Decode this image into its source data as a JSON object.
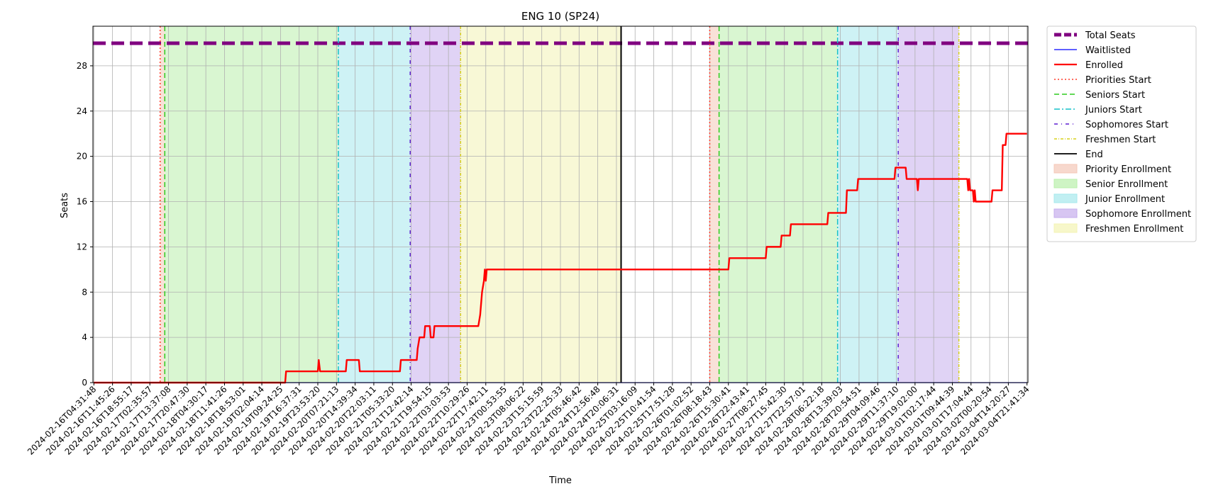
{
  "chart_data": {
    "type": "line",
    "title": "ENG 10 (SP24)",
    "xlabel": "Time",
    "ylabel": "Seats",
    "ylim": [
      0,
      31.5
    ],
    "grid": true,
    "legend_placement": "outside-upper-right",
    "yticks": [
      0,
      4,
      8,
      12,
      16,
      20,
      24,
      28
    ],
    "xlim": [
      -0.05,
      50.05
    ],
    "xticks": [
      "2024-02-16T04:31:48",
      "2024-02-16T11:45:26",
      "2024-02-16T18:55:17",
      "2024-02-17T02:35:57",
      "2024-02-17T13:37:08",
      "2024-02-17T20:47:30",
      "2024-02-18T04:30:17",
      "2024-02-18T11:41:26",
      "2024-02-18T18:53:01",
      "2024-02-19T02:04:14",
      "2024-02-19T09:24:25",
      "2024-02-19T16:37:31",
      "2024-02-19T23:53:20",
      "2024-02-20T07:21:13",
      "2024-02-20T14:39:34",
      "2024-02-20T22:03:11",
      "2024-02-21T05:33:20",
      "2024-02-21T12:42:14",
      "2024-02-21T19:54:15",
      "2024-02-22T03:03:53",
      "2024-02-22T10:29:26",
      "2024-02-22T17:42:11",
      "2024-02-23T00:53:55",
      "2024-02-23T08:06:22",
      "2024-02-23T15:15:59",
      "2024-02-23T22:25:33",
      "2024-02-24T05:46:42",
      "2024-02-24T12:56:48",
      "2024-02-24T20:06:31",
      "2024-02-25T03:16:09",
      "2024-02-25T10:41:54",
      "2024-02-25T17:51:28",
      "2024-02-26T01:02:52",
      "2024-02-26T08:18:43",
      "2024-02-26T15:30:41",
      "2024-02-26T22:43:41",
      "2024-02-27T08:27:45",
      "2024-02-27T15:42:30",
      "2024-02-27T22:57:01",
      "2024-02-28T06:22:18",
      "2024-02-28T13:39:03",
      "2024-02-28T20:54:51",
      "2024-02-29T04:09:46",
      "2024-02-29T11:37:10",
      "2024-02-29T19:02:00",
      "2024-03-01T02:17:44",
      "2024-03-01T09:44:39",
      "2024-03-01T17:04:44",
      "2024-03-02T00:20:54",
      "2024-03-04T14:20:27",
      "2024-03-04T21:41:34"
    ],
    "total_seats": 30,
    "waitlisted": [
      [
        0,
        0
      ],
      [
        50,
        0
      ]
    ],
    "enrolled": [
      [
        0,
        0
      ],
      [
        10.25,
        0
      ],
      [
        10.3,
        1
      ],
      [
        12.0,
        1
      ],
      [
        12.05,
        2
      ],
      [
        12.12,
        1
      ],
      [
        13.5,
        1
      ],
      [
        13.55,
        2
      ],
      [
        14.2,
        2
      ],
      [
        14.25,
        1
      ],
      [
        16.4,
        1
      ],
      [
        16.45,
        2
      ],
      [
        17.3,
        2
      ],
      [
        17.35,
        3
      ],
      [
        17.45,
        4
      ],
      [
        17.7,
        4
      ],
      [
        17.75,
        5
      ],
      [
        18.0,
        5
      ],
      [
        18.05,
        4
      ],
      [
        18.2,
        4
      ],
      [
        18.25,
        5
      ],
      [
        20.6,
        5
      ],
      [
        20.7,
        6
      ],
      [
        20.8,
        8
      ],
      [
        20.9,
        9
      ],
      [
        20.95,
        10
      ],
      [
        21.0,
        9
      ],
      [
        21.05,
        10
      ],
      [
        34.0,
        10
      ],
      [
        34.05,
        11
      ],
      [
        36.0,
        11
      ],
      [
        36.05,
        12
      ],
      [
        36.8,
        12
      ],
      [
        36.85,
        13
      ],
      [
        37.3,
        13
      ],
      [
        37.35,
        14
      ],
      [
        39.3,
        14
      ],
      [
        39.35,
        15
      ],
      [
        40.3,
        15
      ],
      [
        40.35,
        17
      ],
      [
        40.9,
        17
      ],
      [
        40.95,
        18
      ],
      [
        42.9,
        18
      ],
      [
        42.95,
        19
      ],
      [
        43.5,
        19
      ],
      [
        43.55,
        18
      ],
      [
        44.1,
        18
      ],
      [
        44.15,
        17
      ],
      [
        44.2,
        18
      ],
      [
        46.8,
        18
      ],
      [
        46.85,
        17
      ],
      [
        46.9,
        18
      ],
      [
        46.95,
        17
      ],
      [
        47.1,
        17
      ],
      [
        47.15,
        16
      ],
      [
        47.2,
        17
      ],
      [
        47.25,
        16
      ],
      [
        48.1,
        16
      ],
      [
        48.15,
        17
      ],
      [
        48.65,
        17
      ],
      [
        48.7,
        21
      ],
      [
        48.85,
        21
      ],
      [
        48.9,
        22
      ],
      [
        50,
        22
      ]
    ],
    "markers": [
      {
        "name": "Priorities Start",
        "x": 3.55,
        "color": "#ff3a2a",
        "dash": "2,3"
      },
      {
        "name": "Seniors Start",
        "x": 3.8,
        "color": "#2ecc1f",
        "dash": "7,4"
      },
      {
        "name": "Juniors Start",
        "x": 13.1,
        "color": "#17c1c9",
        "dash": "8,3,2,3"
      },
      {
        "name": "Sophomores Start",
        "x": 16.95,
        "color": "#5d1fd0",
        "dash": "5,5,1,5"
      },
      {
        "name": "Freshmen Start",
        "x": 19.65,
        "color": "#d8d21c",
        "dash": "4,2,1,2"
      },
      {
        "name": "End",
        "x": 28.25,
        "color": "#000000",
        "dash": ""
      },
      {
        "name": "Priorities Start",
        "x": 33.0,
        "color": "#ff3a2a",
        "dash": "2,3"
      },
      {
        "name": "Seniors Start",
        "x": 33.5,
        "color": "#2ecc1f",
        "dash": "7,4"
      },
      {
        "name": "Juniors Start",
        "x": 39.85,
        "color": "#17c1c9",
        "dash": "8,3,2,3"
      },
      {
        "name": "Sophomores Start",
        "x": 43.1,
        "color": "#5d1fd0",
        "dash": "5,5,1,5"
      },
      {
        "name": "Freshmen Start",
        "x": 46.35,
        "color": "#d8d21c",
        "dash": "4,2,1,2"
      }
    ],
    "regions": [
      {
        "name": "Priority Enrollment",
        "from": 3.55,
        "to": 3.8,
        "color": "#f4c8b8"
      },
      {
        "name": "Senior Enrollment",
        "from": 3.8,
        "to": 13.1,
        "color": "#b9efab"
      },
      {
        "name": "Junior Enrollment",
        "from": 13.1,
        "to": 16.95,
        "color": "#a6e8ec"
      },
      {
        "name": "Sophomore Enrollment",
        "from": 16.95,
        "to": 19.65,
        "color": "#c6aeec"
      },
      {
        "name": "Freshmen Enrollment",
        "from": 19.65,
        "to": 28.25,
        "color": "#f3f3b4"
      },
      {
        "name": "Priority Enrollment",
        "from": 33.0,
        "to": 33.5,
        "color": "#f4c8b8"
      },
      {
        "name": "Senior Enrollment",
        "from": 33.5,
        "to": 39.85,
        "color": "#b9efab"
      },
      {
        "name": "Junior Enrollment",
        "from": 39.85,
        "to": 43.1,
        "color": "#a6e8ec"
      },
      {
        "name": "Sophomore Enrollment",
        "from": 43.1,
        "to": 46.35,
        "color": "#c6aeec"
      }
    ],
    "legend": [
      {
        "label": "Total Seats",
        "kind": "line",
        "color": "#800080",
        "dash": "10,4",
        "width": 5
      },
      {
        "label": "Waitlisted",
        "kind": "line",
        "color": "#0000ff",
        "dash": "",
        "width": 1.2
      },
      {
        "label": "Enrolled",
        "kind": "line",
        "color": "#ff0000",
        "dash": "",
        "width": 2.2
      },
      {
        "label": "Priorities Start",
        "kind": "line",
        "color": "#ff3a2a",
        "dash": "2,3",
        "width": 1.5
      },
      {
        "label": "Seniors Start",
        "kind": "line",
        "color": "#2ecc1f",
        "dash": "7,4",
        "width": 1.5
      },
      {
        "label": "Juniors Start",
        "kind": "line",
        "color": "#17c1c9",
        "dash": "8,3,2,3",
        "width": 1.5
      },
      {
        "label": "Sophomores Start",
        "kind": "line",
        "color": "#5d1fd0",
        "dash": "5,5,1,5",
        "width": 1.5
      },
      {
        "label": "Freshmen Start",
        "kind": "line",
        "color": "#d8d21c",
        "dash": "4,2,1,2",
        "width": 1.5
      },
      {
        "label": "End",
        "kind": "line",
        "color": "#000000",
        "dash": "",
        "width": 1.8
      },
      {
        "label": "Priority Enrollment",
        "kind": "patch",
        "color": "#f4c8b8"
      },
      {
        "label": "Senior Enrollment",
        "kind": "patch",
        "color": "#b9efab"
      },
      {
        "label": "Junior Enrollment",
        "kind": "patch",
        "color": "#a6e8ec"
      },
      {
        "label": "Sophomore Enrollment",
        "kind": "patch",
        "color": "#c6aeec"
      },
      {
        "label": "Freshmen Enrollment",
        "kind": "patch",
        "color": "#f3f3b4"
      }
    ]
  }
}
